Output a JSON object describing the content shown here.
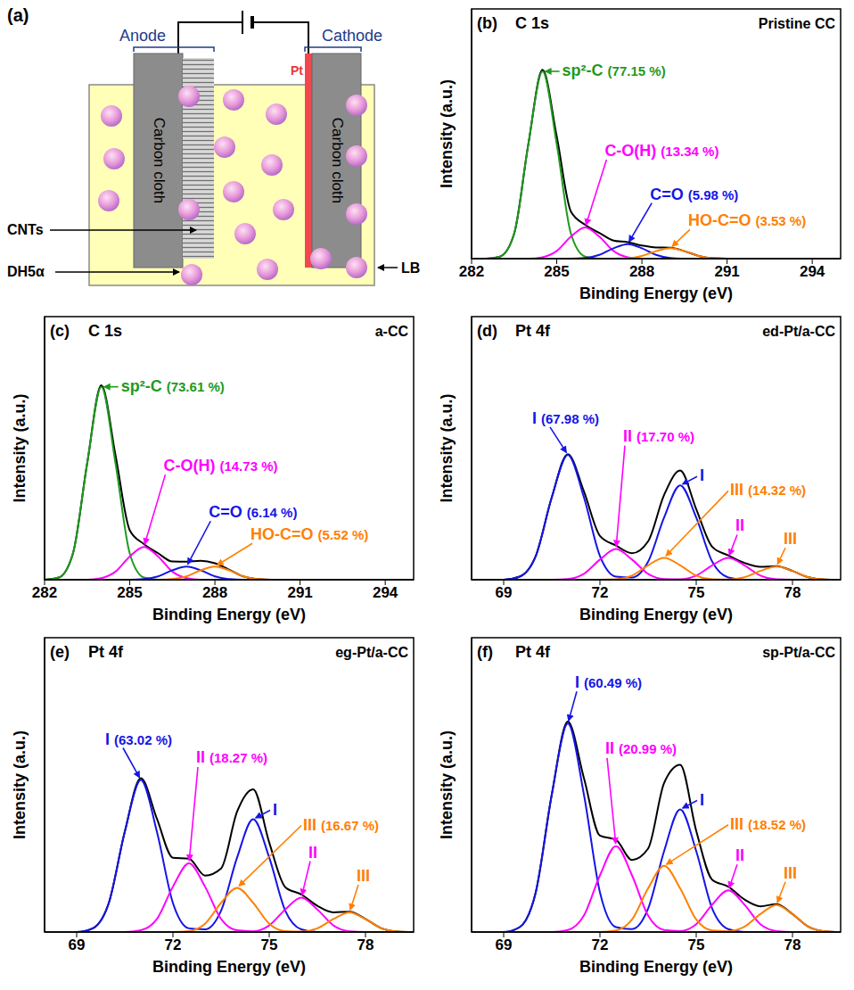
{
  "diagram": {
    "panel": "(a)",
    "anode": "Anode",
    "cathode": "Cathode",
    "anode_electrode": "Carbon cloth",
    "cathode_electrode": "Carbon cloth",
    "catalyst": "Pt",
    "nanotubes": "CNTs",
    "bacteria": "DH5α",
    "medium": "LB"
  },
  "chart_data": [
    {
      "type": "line",
      "panel": "(b)",
      "title": "C 1s",
      "subtitle": "Pristine CC",
      "x_label": "Binding Energy (eV)",
      "y_label": "Intensity (a.u.)",
      "x": [
        282,
        282.5,
        283,
        283.5,
        284,
        284.5,
        285,
        285.5,
        286,
        286.5,
        287,
        287.5,
        288,
        288.5,
        289,
        289.5,
        290,
        290.5,
        291,
        291.5,
        292,
        292.5,
        293,
        293.5,
        294,
        294.5,
        295
      ],
      "xlim": [
        282,
        295
      ],
      "xticks": [
        282,
        285,
        288,
        291,
        294
      ],
      "ylim": [
        0,
        120
      ],
      "tick_labels": "x",
      "series": [
        {
          "color": "#000000",
          "values": [
            0,
            0,
            1,
            12,
            55,
            90.7,
            58.7,
            22.6,
            16.3,
            12.4,
            8.7,
            7.9,
            6.3,
            5.4,
            5.3,
            3.6,
            1.3,
            0.2,
            0,
            0,
            0,
            0,
            0,
            0,
            0,
            0,
            0
          ]
        },
        {
          "name": "sp²-C",
          "label": "(77.15 %)",
          "color": "#1e9a1e",
          "values": [
            0,
            0,
            1,
            12,
            55,
            90,
            55,
            12,
            1,
            0,
            0,
            0,
            0,
            0,
            0,
            0,
            0,
            0,
            0,
            0,
            0,
            0,
            0,
            0,
            0,
            0,
            0
          ]
        },
        {
          "name": "C-O(H)",
          "label": "(13.34 %)",
          "color": "#ff00ff",
          "values": [
            0,
            0,
            0,
            0,
            0,
            0.7,
            3.7,
            10.6,
            15,
            10.6,
            3.7,
            0.7,
            0,
            0,
            0,
            0,
            0,
            0,
            0,
            0,
            0,
            0,
            0,
            0,
            0,
            0,
            0
          ]
        },
        {
          "name": "C=O",
          "label": "(5.98 %)",
          "color": "#1515e6",
          "values": [
            0,
            0,
            0,
            0,
            0,
            0,
            0,
            0,
            0.3,
            1.8,
            5,
            7,
            5,
            1.8,
            0.3,
            0,
            0,
            0,
            0,
            0,
            0,
            0,
            0,
            0,
            0,
            0,
            0
          ]
        },
        {
          "name": "HO-C=O",
          "label": "(3.53 %)",
          "color": "#ff8000",
          "values": [
            0,
            0,
            0,
            0,
            0,
            0,
            0,
            0,
            0,
            0,
            0,
            0.2,
            1.3,
            3.6,
            5,
            3.6,
            1.3,
            0.2,
            0,
            0,
            0,
            0,
            0,
            0,
            0,
            0,
            0
          ]
        }
      ]
    },
    {
      "type": "line",
      "panel": "(c)",
      "title": "C 1s",
      "subtitle": "a-CC",
      "x_label": "Binding Energy (eV)",
      "y_label": "Intensity (a.u.)",
      "x": [
        282,
        282.5,
        283,
        283.5,
        284,
        284.5,
        285,
        285.5,
        286,
        286.5,
        287,
        287.5,
        288,
        288.5,
        289,
        289.5,
        290,
        290.5,
        291,
        291.5,
        292,
        292.5,
        293,
        293.5,
        294,
        294.5,
        295
      ],
      "xlim": [
        282,
        295
      ],
      "xticks": [
        282,
        285,
        288,
        291,
        294
      ],
      "ylim": [
        0,
        120
      ],
      "tick_labels": "x",
      "series": [
        {
          "color": "#000000",
          "values": [
            0,
            1,
            12,
            53,
            88.7,
            56.7,
            22.6,
            16.3,
            12.1,
            8.3,
            8.2,
            8.6,
            7.5,
            4.6,
            1.5,
            0.3,
            0,
            0,
            0,
            0,
            0,
            0,
            0,
            0,
            0,
            0,
            0
          ]
        },
        {
          "name": "sp²-C",
          "label": "(73.61 %)",
          "color": "#1e9a1e",
          "values": [
            0,
            1,
            12,
            53,
            88,
            53,
            12,
            1,
            0,
            0,
            0,
            0,
            0,
            0,
            0,
            0,
            0,
            0,
            0,
            0,
            0,
            0,
            0,
            0,
            0,
            0,
            0
          ]
        },
        {
          "name": "C-O(H)",
          "label": "(14.73 %)",
          "color": "#ff00ff",
          "values": [
            0,
            0,
            0,
            0,
            0.7,
            3.7,
            10.6,
            15,
            10.6,
            3.7,
            0.7,
            0,
            0,
            0,
            0,
            0,
            0,
            0,
            0,
            0,
            0,
            0,
            0,
            0,
            0,
            0,
            0
          ]
        },
        {
          "name": "C=O",
          "label": "(6.14 %)",
          "color": "#1515e6",
          "values": [
            0,
            0,
            0,
            0,
            0,
            0,
            0,
            0.3,
            1.5,
            4.3,
            6,
            4.3,
            1.5,
            0.3,
            0,
            0,
            0,
            0,
            0,
            0,
            0,
            0,
            0,
            0,
            0,
            0,
            0
          ]
        },
        {
          "name": "HO-C=O",
          "label": "(5.52 %)",
          "color": "#ff8000",
          "values": [
            0,
            0,
            0,
            0,
            0,
            0,
            0,
            0,
            0,
            0.3,
            1.5,
            4.3,
            6,
            4.3,
            1.5,
            0.3,
            0,
            0,
            0,
            0,
            0,
            0,
            0,
            0,
            0,
            0,
            0
          ]
        }
      ]
    },
    {
      "type": "line",
      "panel": "(d)",
      "title": "Pt 4f",
      "subtitle": "ed-Pt/a-CC",
      "x_label": "Binding Energy (eV)",
      "y_label": "Intensity (a.u.)",
      "x": [
        68,
        68.5,
        69,
        69.5,
        70,
        70.5,
        71,
        71.5,
        72,
        72.5,
        73,
        73.5,
        74,
        74.5,
        75,
        75.5,
        76,
        76.5,
        77,
        77.5,
        78,
        78.5,
        79,
        79.5
      ],
      "xlim": [
        68,
        79.5
      ],
      "xticks": [
        69,
        72,
        75,
        78
      ],
      "ylim": [
        0,
        120
      ],
      "tick_labels": "x",
      "series": [
        {
          "color": "#000000",
          "values": [
            0,
            0,
            0,
            1.4,
            10.8,
            37.6,
            57.3,
            40.3,
            20.0,
            15.6,
            12.1,
            17.5,
            38.7,
            49.8,
            32.2,
            15.0,
            11.1,
            7.7,
            5.9,
            6.2,
            4.0,
            1.1,
            0.1,
            0
          ]
        },
        {
          "name": "I",
          "label": "(67.98 %)",
          "color": "#1515e6",
          "values": [
            0,
            0,
            0,
            1.4,
            10.8,
            37.6,
            57,
            37.6,
            10.8,
            1.4,
            1.0,
            8.2,
            28.4,
            43,
            28.4,
            8.2,
            1.0,
            0,
            0,
            0,
            0,
            0,
            0,
            0
          ]
        },
        {
          "name": "II",
          "label": "(17.70 %)",
          "color": "#ff00ff",
          "values": [
            0,
            0,
            0,
            0,
            0,
            0,
            0.3,
            2.7,
            9.2,
            14,
            9.2,
            2.7,
            0.3,
            0.2,
            1.9,
            6.6,
            10,
            6.6,
            1.9,
            0.2,
            0,
            0,
            0,
            0
          ]
        },
        {
          "name": "III",
          "label": "(14.32 %)",
          "color": "#ff8000",
          "values": [
            0,
            0,
            0,
            0,
            0,
            0,
            0,
            0,
            0,
            0.2,
            1.9,
            6.6,
            10,
            6.6,
            1.9,
            0.2,
            0.1,
            1.1,
            4.0,
            6,
            4.0,
            1.1,
            0.1,
            0
          ]
        }
      ]
    },
    {
      "type": "line",
      "panel": "(e)",
      "title": "Pt 4f",
      "subtitle": "eg-Pt/a-CC",
      "x_label": "Binding Energy (eV)",
      "y_label": "Intensity (a.u.)",
      "x": [
        68,
        68.5,
        69,
        69.5,
        70,
        70.5,
        71,
        71.5,
        72,
        72.5,
        73,
        73.5,
        74,
        74.5,
        75,
        75.5,
        76,
        76.5,
        77,
        77.5,
        78,
        78.5,
        79,
        79.5
      ],
      "xlim": [
        68,
        79.5
      ],
      "xticks": [
        69,
        72,
        75,
        78
      ],
      "ylim": [
        0,
        120
      ],
      "tick_labels": "x",
      "series": [
        {
          "color": "#000000",
          "values": [
            0,
            0,
            0,
            1.5,
            11.8,
            40.9,
            62.7,
            46.2,
            30.3,
            29.9,
            23.0,
            25.9,
            49.1,
            58.2,
            36.5,
            18.3,
            15.3,
            10.7,
            8.0,
            8.3,
            5.3,
            1.5,
            0.2,
            0
          ]
        },
        {
          "name": "I",
          "label": "(63.02 %)",
          "color": "#1515e6",
          "values": [
            0,
            0,
            0,
            1.5,
            11.8,
            40.9,
            62,
            40.9,
            11.8,
            1.5,
            1.1,
            8.7,
            30.4,
            46,
            30.4,
            8.7,
            1.1,
            0,
            0,
            0,
            0,
            0,
            0,
            0
          ]
        },
        {
          "name": "II",
          "label": "(18.27 %)",
          "color": "#ff00ff",
          "values": [
            0,
            0,
            0,
            0,
            0,
            0,
            0.7,
            5.3,
            18.5,
            28,
            18.5,
            5.3,
            0.7,
            0.3,
            2.7,
            9.2,
            14,
            9.2,
            2.7,
            0.3,
            0,
            0,
            0,
            0
          ]
        },
        {
          "name": "III",
          "label": "(16.67 %)",
          "color": "#ff8000",
          "values": [
            0,
            0,
            0,
            0,
            0,
            0,
            0,
            0,
            0,
            0.4,
            3.4,
            11.9,
            18,
            11.9,
            3.4,
            0.4,
            0.2,
            1.5,
            5.3,
            8,
            5.3,
            1.5,
            0.2,
            0
          ]
        }
      ]
    },
    {
      "type": "line",
      "panel": "(f)",
      "title": "Pt 4f",
      "subtitle": "sp-Pt/a-CC",
      "x_label": "Binding Energy (eV)",
      "y_label": "Intensity (a.u.)",
      "x": [
        68,
        68.5,
        69,
        69.5,
        70,
        70.5,
        71,
        71.5,
        72,
        72.5,
        73,
        73.5,
        74,
        74.5,
        75,
        75.5,
        76,
        76.5,
        77,
        77.5,
        78,
        78.5,
        79,
        79.5
      ],
      "xlim": [
        68,
        79.5
      ],
      "xticks": [
        69,
        72,
        75,
        78
      ],
      "ylim": [
        0,
        120
      ],
      "tick_labels": "x",
      "series": [
        {
          "color": "#000000",
          "values": [
            0,
            0,
            0,
            2.0,
            16.2,
            56.1,
            85.8,
            62.8,
            39.3,
            37.6,
            29.4,
            34.0,
            60.8,
            68.2,
            41.3,
            21.3,
            18.5,
            13.3,
            10.5,
            11.4,
            7.3,
            2.1,
            0.3,
            0
          ]
        },
        {
          "name": "I",
          "label": "(60.49 %)",
          "color": "#1515e6",
          "values": [
            0,
            0,
            0,
            2.0,
            16.2,
            56.1,
            85,
            56.1,
            16.2,
            2.0,
            1.2,
            9.5,
            33,
            50,
            33,
            9.5,
            1.2,
            0,
            0,
            0,
            0,
            0,
            0,
            0
          ]
        },
        {
          "name": "II",
          "label": "(20.99 %)",
          "color": "#ff00ff",
          "values": [
            0,
            0,
            0,
            0,
            0,
            0,
            0.8,
            6.7,
            23.1,
            35,
            23.1,
            6.7,
            0.8,
            0.4,
            3.2,
            11.2,
            17,
            11.2,
            3.2,
            0.4,
            0,
            0,
            0,
            0
          ]
        },
        {
          "name": "III",
          "label": "(18.52 %)",
          "color": "#ff8000",
          "values": [
            0,
            0,
            0,
            0,
            0,
            0,
            0,
            0,
            0,
            0.6,
            5.1,
            17.8,
            27,
            17.8,
            5.1,
            0.6,
            0.3,
            2.1,
            7.3,
            11,
            7.3,
            2.1,
            0.3,
            0
          ]
        }
      ]
    }
  ]
}
